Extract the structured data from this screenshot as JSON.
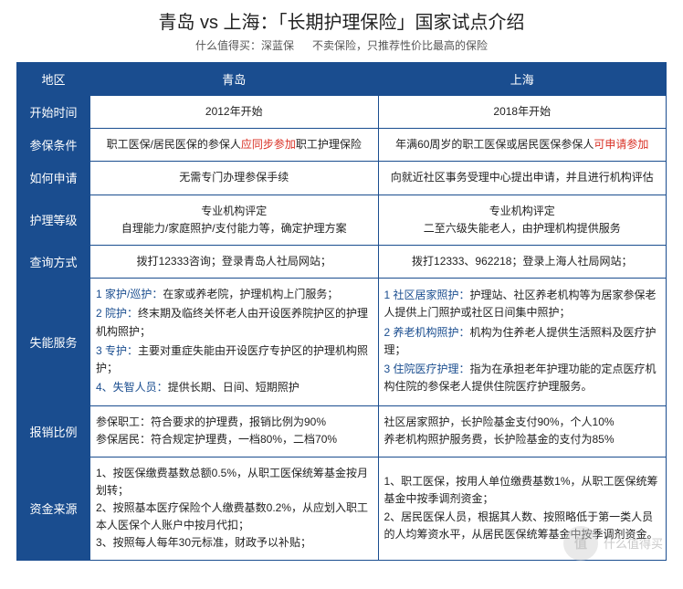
{
  "title": "青岛 vs 上海：「长期护理保险」国家试点介绍",
  "subtitle_left": "什么值得买：深蓝保",
  "subtitle_right": "不卖保险，只推荐性价比最高的保险",
  "header": {
    "region": "地区",
    "qingdao": "青岛",
    "shanghai": "上海"
  },
  "rows": {
    "start": {
      "label": "开始时间",
      "q": "2012年开始",
      "s": "2018年开始"
    },
    "enroll": {
      "label": "参保条件",
      "q_pre": "职工医保/居民医保的参保人",
      "q_red": "应同步参加",
      "q_post": "职工护理保险",
      "s_pre": "年满60周岁的职工医保或居民医保参保人",
      "s_red": "可申请参加"
    },
    "apply": {
      "label": "如何申请",
      "q": "无需专门办理参保手续",
      "s": "向就近社区事务受理中心提出申请，并且进行机构评估"
    },
    "level": {
      "label": "护理等级",
      "q_l1": "专业机构评定",
      "q_l2": "自理能力/家庭照护/支付能力等，确定护理方案",
      "s_l1": "专业机构评定",
      "s_l2": "二至六级失能老人，由护理机构提供服务"
    },
    "query": {
      "label": "查询方式",
      "q": "拨打12333咨询；登录青岛人社局网站；",
      "s": "拨打12333、962218；登录上海人社局网站；"
    },
    "service": {
      "label": "失能服务",
      "q": [
        {
          "k": "1 家护/巡护：",
          "v": "在家或养老院，护理机构上门服务；"
        },
        {
          "k": "2 院护：",
          "v": "终末期及临终关怀老人由开设医养院护区的护理机构照护；"
        },
        {
          "k": "3 专护：",
          "v": "主要对重症失能由开设医疗专护区的护理机构照护；"
        },
        {
          "k": "4、失智人员：",
          "v": "提供长期、日间、短期照护"
        }
      ],
      "s": [
        {
          "k": "1 社区居家照护：",
          "v": "护理站、社区养老机构等为居家参保老人提供上门照护或社区日间集中照护；"
        },
        {
          "k": "2 养老机构照护：",
          "v": "机构为住养老人提供生活照料及医疗护理；"
        },
        {
          "k": "3 住院医疗护理：",
          "v": "指为在承担老年护理功能的定点医疗机构住院的参保老人提供住院医疗护理服务。"
        }
      ]
    },
    "reimburse": {
      "label": "报销比例",
      "q_l1": "参保职工：符合要求的护理费，报销比例为90%",
      "q_l2": "参保居民：符合规定护理费，一档80%，二档70%",
      "s_l1": "社区居家照护，长护险基金支付90%，个人10%",
      "s_l2": "养老机构照护服务费，长护险基金的支付为85%"
    },
    "fund": {
      "label": "资金来源",
      "q": [
        "1、按医保缴费基数总额0.5%，从职工医保统筹基金按月划转；",
        "2、按照基本医疗保险个人缴费基数0.2%，从应划入职工本人医保个人账户中按月代扣；",
        "3、按照每人每年30元标准，财政予以补贴；"
      ],
      "s": [
        "1、职工医保，按用人单位缴费基数1%，从职工医保统筹基金中按季调剂资金；",
        "2、居民医保人员，根据其人数、按照略低于第一类人员的人均筹资水平，从居民医保统筹基金中按季调剂资金。"
      ]
    }
  },
  "watermark": {
    "icon": "值",
    "text": "什么值得买"
  },
  "colors": {
    "header_bg": "#1a4d8f",
    "border": "#1a4d8f",
    "red": "#d93025",
    "blue": "#1a4d8f"
  }
}
